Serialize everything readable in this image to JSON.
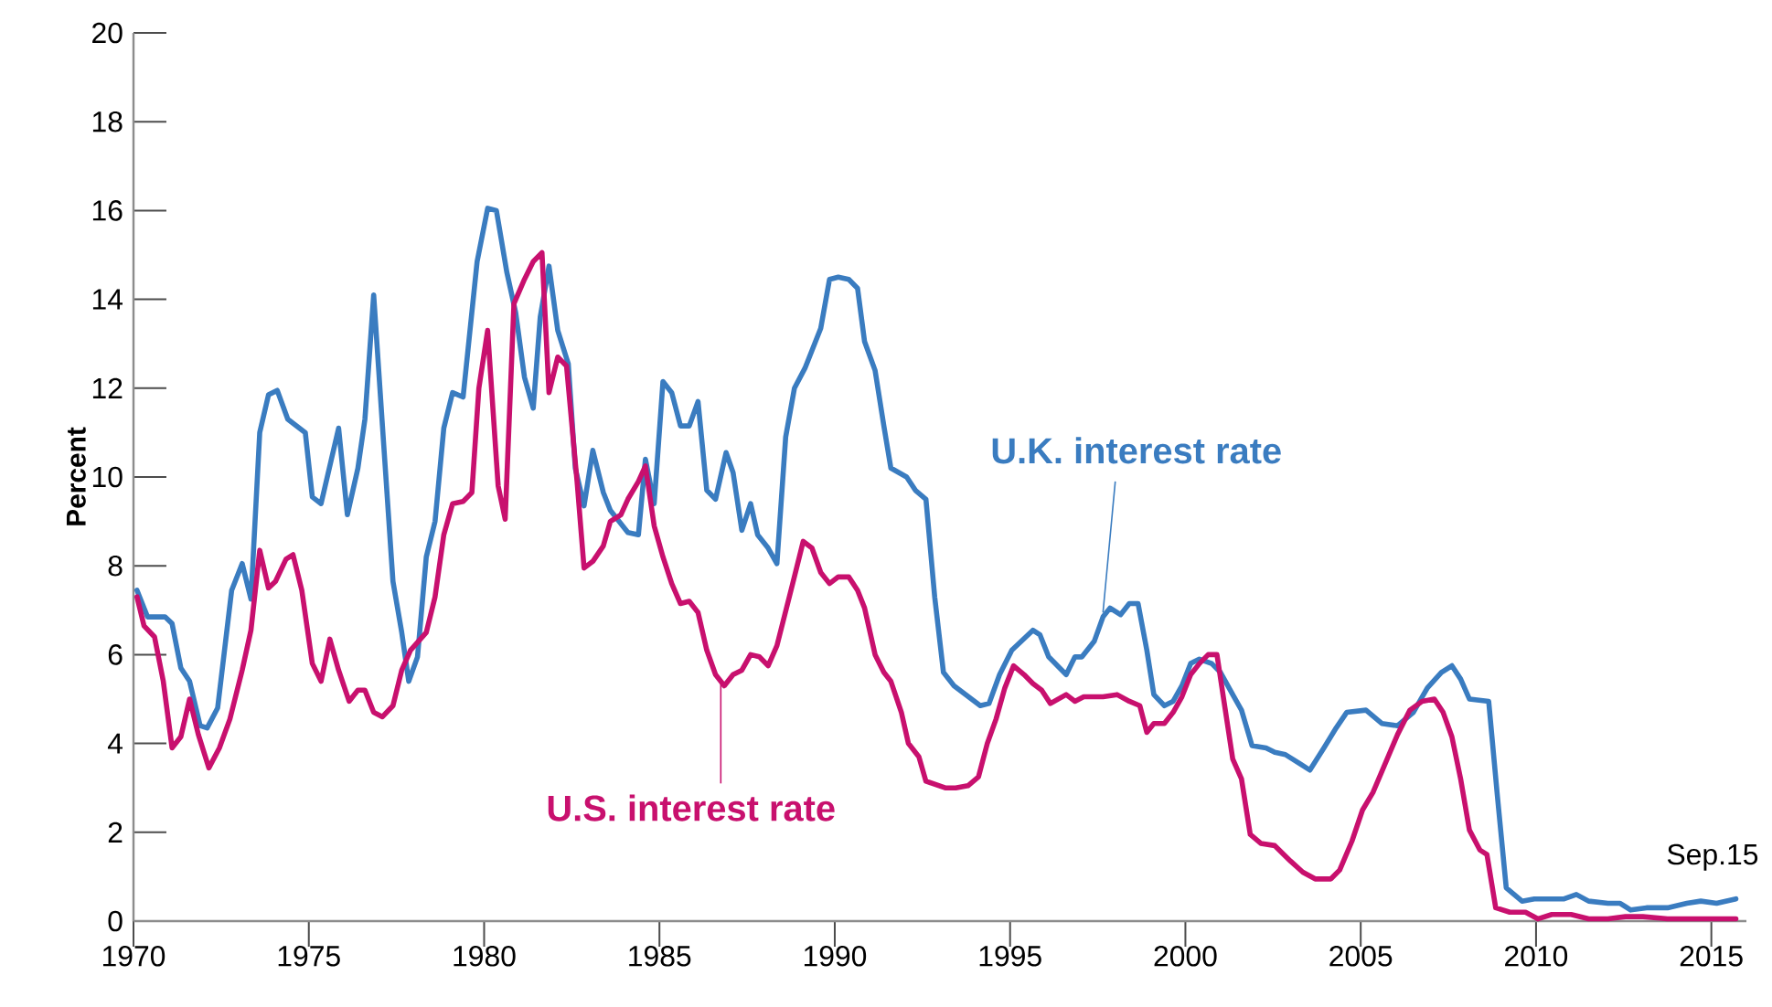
{
  "chart_data": {
    "type": "line",
    "ylabel": "Percent",
    "xlim": [
      1970,
      2016
    ],
    "ylim": [
      0,
      20
    ],
    "xticks": [
      1970,
      1975,
      1980,
      1985,
      1990,
      1995,
      2000,
      2005,
      2010,
      2015
    ],
    "yticks": [
      0,
      2,
      4,
      6,
      8,
      10,
      12,
      14,
      16,
      18,
      20
    ],
    "annotations": [
      {
        "text": "Sep.15",
        "x": 2015.7,
        "y": 0.5
      }
    ],
    "series": [
      {
        "name": "U.K. interest rate",
        "color": "#3a7cc0",
        "x": [
          1970.1,
          1970.4,
          1970.9,
          1971.1,
          1971.35,
          1971.6,
          1971.9,
          1972.1,
          1972.4,
          1972.8,
          1973.1,
          1973.35,
          1973.6,
          1973.85,
          1974.1,
          1974.4,
          1974.9,
          1975.1,
          1975.35,
          1975.85,
          1976.1,
          1976.4,
          1976.6,
          1976.85,
          1977.1,
          1977.4,
          1977.65,
          1977.85,
          1978.1,
          1978.35,
          1978.6,
          1978.85,
          1979.1,
          1979.4,
          1979.8,
          1980.1,
          1980.35,
          1980.65,
          1980.9,
          1981.15,
          1981.4,
          1981.6,
          1981.85,
          1982.1,
          1982.4,
          1982.6,
          1982.85,
          1983.1,
          1983.4,
          1983.6,
          1984.1,
          1984.4,
          1984.6,
          1984.85,
          1985.1,
          1985.35,
          1985.6,
          1985.85,
          1986.1,
          1986.35,
          1986.6,
          1986.9,
          1987.1,
          1987.35,
          1987.6,
          1987.8,
          1988.1,
          1988.35,
          1988.6,
          1988.85,
          1989.15,
          1989.6,
          1989.85,
          1990.1,
          1990.4,
          1990.65,
          1990.85,
          1991.15,
          1991.4,
          1991.6,
          1992.05,
          1992.3,
          1992.6,
          1992.85,
          1993.1,
          1993.4,
          1993.9,
          1994.15,
          1994.4,
          1994.7,
          1995.05,
          1995.65,
          1995.85,
          1996.1,
          1996.6,
          1996.85,
          1997.05,
          1997.4,
          1997.65,
          1997.85,
          1998.15,
          1998.4,
          1998.65,
          1998.9,
          1999.1,
          1999.4,
          1999.65,
          1999.9,
          2000.15,
          2000.4,
          2000.75,
          2001.0,
          2001.35,
          2001.6,
          2001.9,
          2002.3,
          2002.55,
          2002.85,
          2003.25,
          2003.55,
          2003.95,
          2004.3,
          2004.6,
          2005.15,
          2005.6,
          2006.05,
          2006.5,
          2006.9,
          2007.3,
          2007.6,
          2007.85,
          2008.1,
          2008.65,
          2008.9,
          2009.15,
          2009.6,
          2009.95,
          2010.8,
          2011.15,
          2011.5,
          2012.05,
          2012.4,
          2012.7,
          2013.15,
          2013.75,
          2014.3,
          2014.7,
          2015.15,
          2015.7
        ],
        "values": [
          7.45,
          6.85,
          6.85,
          6.7,
          5.7,
          5.4,
          4.4,
          4.35,
          4.8,
          7.45,
          8.05,
          7.25,
          11.0,
          11.85,
          11.95,
          11.3,
          11.0,
          9.55,
          9.4,
          11.1,
          9.15,
          10.2,
          11.3,
          14.1,
          11.15,
          7.65,
          6.5,
          5.4,
          5.95,
          8.2,
          9.0,
          11.1,
          11.9,
          11.8,
          14.85,
          16.05,
          16.0,
          14.6,
          13.7,
          12.25,
          11.55,
          13.6,
          14.75,
          13.3,
          12.55,
          10.2,
          9.35,
          10.6,
          9.65,
          9.25,
          8.75,
          8.7,
          10.4,
          9.4,
          12.15,
          11.9,
          11.15,
          11.15,
          11.7,
          9.7,
          9.5,
          10.55,
          10.1,
          8.8,
          9.4,
          8.7,
          8.4,
          8.05,
          10.9,
          12.0,
          12.45,
          13.35,
          14.45,
          14.5,
          14.45,
          14.25,
          13.05,
          12.4,
          11.15,
          10.2,
          10.0,
          9.7,
          9.5,
          7.3,
          5.6,
          5.3,
          5.0,
          4.85,
          4.9,
          5.55,
          6.1,
          6.55,
          6.45,
          5.95,
          5.55,
          5.95,
          5.95,
          6.3,
          6.85,
          7.05,
          6.9,
          7.15,
          7.15,
          6.1,
          5.1,
          4.85,
          4.95,
          5.3,
          5.8,
          5.9,
          5.8,
          5.6,
          5.1,
          4.75,
          3.95,
          3.9,
          3.8,
          3.75,
          3.55,
          3.4,
          3.9,
          4.35,
          4.7,
          4.75,
          4.45,
          4.4,
          4.7,
          5.25,
          5.6,
          5.75,
          5.45,
          5.0,
          4.95,
          2.8,
          0.75,
          0.45,
          0.5,
          0.5,
          0.6,
          0.45,
          0.4,
          0.4,
          0.25,
          0.3,
          0.3,
          0.4,
          0.45,
          0.4,
          0.5
        ]
      },
      {
        "name": "U.S. interest rate",
        "color": "#c8106e",
        "x": [
          1970.1,
          1970.3,
          1970.6,
          1970.85,
          1971.1,
          1971.35,
          1971.6,
          1971.85,
          1972.15,
          1972.45,
          1972.75,
          1973.1,
          1973.35,
          1973.6,
          1973.85,
          1974.05,
          1974.35,
          1974.55,
          1974.8,
          1975.1,
          1975.35,
          1975.6,
          1975.85,
          1976.15,
          1976.4,
          1976.6,
          1976.85,
          1977.1,
          1977.4,
          1977.65,
          1977.9,
          1978.35,
          1978.6,
          1978.85,
          1979.1,
          1979.4,
          1979.65,
          1979.85,
          1980.1,
          1980.4,
          1980.6,
          1980.85,
          1981.15,
          1981.4,
          1981.65,
          1981.85,
          1982.1,
          1982.35,
          1982.65,
          1982.85,
          1983.1,
          1983.4,
          1983.6,
          1983.9,
          1984.1,
          1984.4,
          1984.6,
          1984.85,
          1985.1,
          1985.35,
          1985.6,
          1985.85,
          1986.1,
          1986.35,
          1986.6,
          1986.85,
          1987.1,
          1987.35,
          1987.6,
          1987.85,
          1988.1,
          1988.35,
          1988.8,
          1989.1,
          1989.35,
          1989.6,
          1989.85,
          1990.1,
          1990.4,
          1990.65,
          1990.85,
          1991.15,
          1991.4,
          1991.6,
          1991.9,
          1992.1,
          1992.4,
          1992.6,
          1993.15,
          1993.45,
          1993.8,
          1994.1,
          1994.35,
          1994.6,
          1994.85,
          1995.1,
          1995.4,
          1995.65,
          1995.9,
          1996.15,
          1996.6,
          1996.85,
          1997.1,
          1997.65,
          1998.05,
          1998.4,
          1998.7,
          1998.9,
          1999.1,
          1999.4,
          1999.65,
          1999.9,
          2000.15,
          2000.4,
          2000.65,
          2000.9,
          2001.1,
          2001.35,
          2001.6,
          2001.85,
          2002.15,
          2002.55,
          2003.0,
          2003.35,
          2003.7,
          2004.15,
          2004.4,
          2004.75,
          2005.05,
          2005.35,
          2005.7,
          2006.05,
          2006.4,
          2006.75,
          2007.1,
          2007.35,
          2007.6,
          2007.85,
          2008.1,
          2008.4,
          2008.6,
          2008.85,
          2009.25,
          2009.7,
          2010.05,
          2010.45,
          2011.0,
          2011.5,
          2012.05,
          2012.55,
          2013.05,
          2013.75,
          2014.65,
          2015.7
        ],
        "values": [
          7.3,
          6.65,
          6.4,
          5.4,
          3.9,
          4.15,
          5.0,
          4.2,
          3.45,
          3.9,
          4.55,
          5.65,
          6.55,
          8.35,
          7.5,
          7.65,
          8.15,
          8.25,
          7.45,
          5.8,
          5.4,
          6.35,
          5.65,
          4.95,
          5.2,
          5.2,
          4.7,
          4.6,
          4.85,
          5.65,
          6.1,
          6.5,
          7.3,
          8.7,
          9.4,
          9.45,
          9.65,
          12.0,
          13.3,
          9.8,
          9.05,
          13.9,
          14.45,
          14.85,
          15.05,
          11.9,
          12.7,
          12.5,
          9.9,
          7.95,
          8.1,
          8.45,
          9.0,
          9.15,
          9.5,
          9.9,
          10.25,
          8.9,
          8.2,
          7.6,
          7.15,
          7.2,
          6.95,
          6.1,
          5.55,
          5.3,
          5.55,
          5.65,
          6.0,
          5.95,
          5.75,
          6.2,
          7.6,
          8.55,
          8.4,
          7.85,
          7.6,
          7.75,
          7.75,
          7.45,
          7.05,
          6.0,
          5.6,
          5.4,
          4.7,
          4.0,
          3.7,
          3.15,
          3.0,
          3.0,
          3.05,
          3.25,
          4.0,
          4.55,
          5.25,
          5.75,
          5.55,
          5.35,
          5.2,
          4.9,
          5.1,
          4.95,
          5.05,
          5.05,
          5.1,
          4.95,
          4.85,
          4.25,
          4.45,
          4.45,
          4.7,
          5.05,
          5.55,
          5.8,
          6.0,
          6.0,
          4.95,
          3.65,
          3.2,
          1.95,
          1.75,
          1.7,
          1.35,
          1.1,
          0.95,
          0.95,
          1.15,
          1.8,
          2.5,
          2.9,
          3.55,
          4.2,
          4.75,
          4.95,
          5.0,
          4.7,
          4.15,
          3.2,
          2.05,
          1.6,
          1.5,
          0.3,
          0.2,
          0.2,
          0.05,
          0.15,
          0.15,
          0.05,
          0.05,
          0.1,
          0.1,
          0.05,
          0.05,
          0.05
        ]
      }
    ]
  }
}
